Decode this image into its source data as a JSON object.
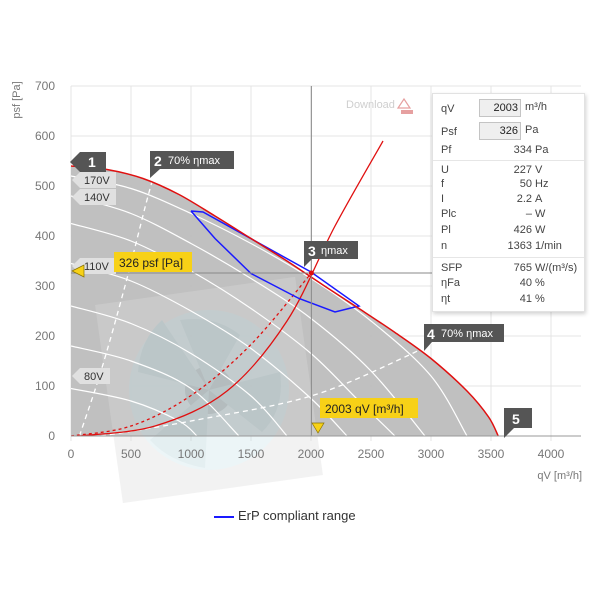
{
  "chart_data": {
    "type": "line",
    "title": "",
    "xlabel": "qV [m³/h]",
    "ylabel": "psf [Pa]",
    "xlim": [
      0,
      4250
    ],
    "ylim": [
      0,
      700
    ],
    "xticks": [
      "0",
      "500",
      "1000",
      "1500",
      "2000",
      "2500",
      "3000",
      "3500",
      "4000"
    ],
    "yticks": [
      "0",
      "100",
      "200",
      "300",
      "400",
      "500",
      "600",
      "700"
    ],
    "grid": true,
    "max_curve": {
      "x": [
        0,
        300,
        600,
        900,
        1200,
        1500,
        1800,
        2100,
        2400,
        2700,
        3000,
        3300,
        3480,
        3560
      ],
      "y": [
        540,
        533,
        515,
        483,
        440,
        395,
        350,
        302,
        255,
        207,
        155,
        90,
        38,
        0
      ]
    },
    "speed_curves": [
      {
        "name": "170V",
        "x": [
          0,
          500,
          1000,
          1500,
          2000,
          2500,
          3000,
          3300
        ],
        "y": [
          520,
          495,
          445,
          385,
          315,
          230,
          120,
          0
        ]
      },
      {
        "name": "140V",
        "x": [
          0,
          500,
          1000,
          1500,
          2000,
          2500,
          2950
        ],
        "y": [
          480,
          445,
          385,
          315,
          235,
          130,
          0
        ]
      },
      {
        "name": "",
        "x": [
          0,
          500,
          1000,
          1500,
          2000,
          2400,
          2700
        ],
        "y": [
          425,
          390,
          330,
          255,
          165,
          70,
          0
        ]
      },
      {
        "name": "110V",
        "x": [
          0,
          500,
          1000,
          1500,
          2000,
          2300
        ],
        "y": [
          345,
          310,
          250,
          175,
          75,
          0
        ]
      },
      {
        "name": "",
        "x": [
          0,
          500,
          1000,
          1500,
          1800
        ],
        "y": [
          260,
          225,
          165,
          80,
          0
        ]
      },
      {
        "name": "",
        "x": [
          0,
          500,
          1000,
          1400
        ],
        "y": [
          180,
          150,
          95,
          0
        ]
      },
      {
        "name": "80V",
        "x": [
          0,
          500,
          900,
          1050
        ],
        "y": [
          95,
          70,
          30,
          0
        ]
      }
    ],
    "voltage_labels": [
      "170V",
      "140V",
      "110V",
      "80V"
    ],
    "efficiency_70_left": {
      "x": [
        70,
        250,
        450,
        620,
        700
      ],
      "y": [
        0,
        130,
        300,
        460,
        530
      ]
    },
    "efficiency_70_right": {
      "x": [
        250,
        1000,
        2000,
        2800,
        3100
      ],
      "y": [
        0,
        30,
        80,
        160,
        200
      ]
    },
    "efficiency_max": {
      "x": [
        70,
        700,
        1300,
        1800,
        2200,
        2600
      ],
      "y": [
        0,
        20,
        90,
        230,
        420,
        590
      ]
    },
    "erp_range": {
      "x": [
        1000,
        1100,
        2000,
        2400,
        2200,
        1900,
        1500,
        1200,
        1000
      ],
      "y": [
        450,
        448,
        328,
        260,
        248,
        275,
        325,
        395,
        450
      ]
    },
    "system_curve": {
      "x": [
        0,
        500,
        1000,
        1500,
        2003
      ],
      "y": [
        0,
        20,
        81,
        183,
        326
      ]
    },
    "operating_point": {
      "x": 2003,
      "y": 326
    },
    "markers": [
      {
        "number": "1",
        "label": ""
      },
      {
        "number": "2",
        "label": "70% ηmax"
      },
      {
        "number": "3",
        "label": "ηmax"
      },
      {
        "number": "4",
        "label": "70% ηmax"
      },
      {
        "number": "5",
        "label": ""
      }
    ],
    "callout_y": "326 psf [Pa]",
    "callout_x": "2003 qV [m³/h]",
    "legend": {
      "label": "ErP compliant range",
      "color": "#1a1aff",
      "position": "bottom"
    },
    "download_label": "Download"
  },
  "info": {
    "qv": {
      "symbol": "qV",
      "value": "2003",
      "unit": "m³/h"
    },
    "psf": {
      "symbol": "Psf",
      "value": "326",
      "unit": "Pa"
    },
    "pf": {
      "symbol": "Pf",
      "value": "334",
      "unit": "Pa"
    },
    "u": {
      "symbol": "U",
      "value": "227",
      "unit": "V"
    },
    "f": {
      "symbol": "f",
      "value": "50",
      "unit": "Hz"
    },
    "i": {
      "symbol": "I",
      "value": "2.2",
      "unit": "A"
    },
    "plc": {
      "symbol": "Plc",
      "value": "–",
      "unit": "W"
    },
    "pl": {
      "symbol": "Pl",
      "value": "426",
      "unit": "W"
    },
    "n": {
      "symbol": "n",
      "value": "1363",
      "unit": "1/min"
    },
    "sfp": {
      "symbol": "SFP",
      "value": "765",
      "unit": "W/(m³/s)"
    },
    "eta_fa": {
      "symbol": "ηFa",
      "value": "40",
      "unit": "%"
    },
    "eta_t": {
      "symbol": "ηt",
      "value": "41",
      "unit": "%"
    }
  },
  "colors": {
    "area": "#bdbdbd",
    "max_curve": "#e01010",
    "system_curve": "#e01010",
    "erp": "#1a1aff",
    "marker_bg": "#555555",
    "callout_bg": "#f7d117"
  }
}
